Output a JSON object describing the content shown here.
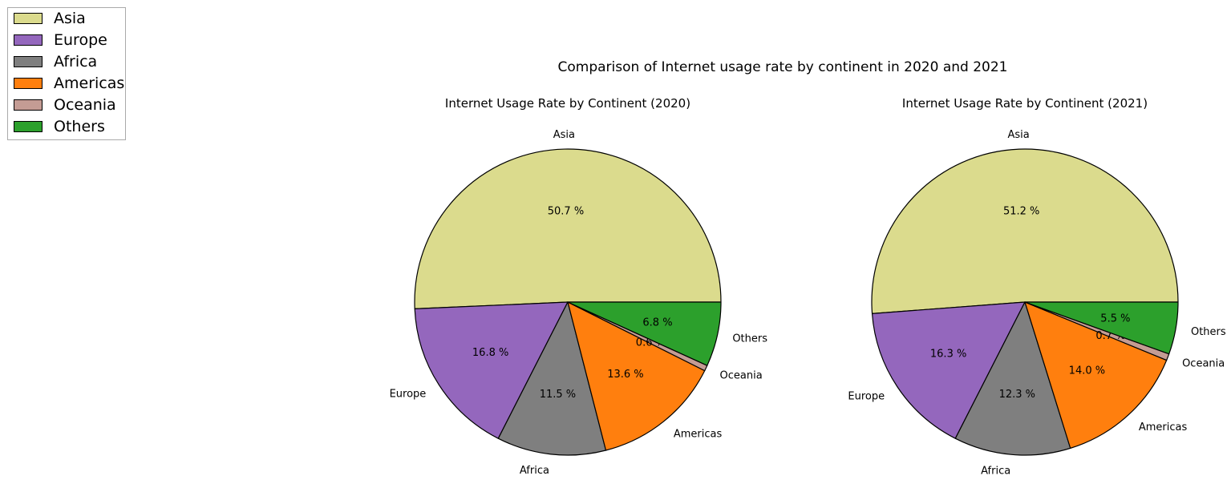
{
  "figure": {
    "suptitle": "Comparison of Internet usage rate by continent in 2020 and 2021"
  },
  "legend": {
    "items": [
      {
        "label": "Asia",
        "color": "#dbdb8d"
      },
      {
        "label": "Europe",
        "color": "#9467bd"
      },
      {
        "label": "Africa",
        "color": "#7f7f7f"
      },
      {
        "label": "Americas",
        "color": "#ff7f0e"
      },
      {
        "label": "Oceania",
        "color": "#c49c94"
      },
      {
        "label": "Others",
        "color": "#2ca02c"
      }
    ]
  },
  "chart_data": [
    {
      "type": "pie",
      "title": "Internet Usage Rate by Continent (2020)",
      "labels": [
        "Asia",
        "Europe",
        "Africa",
        "Americas",
        "Oceania",
        "Others"
      ],
      "values": [
        50.7,
        16.8,
        11.5,
        13.6,
        0.6,
        6.8
      ],
      "pct_labels": [
        "50.7 %",
        "16.8 %",
        "11.5 %",
        "13.6 %",
        "0.6 %",
        "6.8 %"
      ],
      "colors": [
        "#dbdb8d",
        "#9467bd",
        "#7f7f7f",
        "#ff7f0e",
        "#c49c94",
        "#2ca02c"
      ],
      "startangle": 0,
      "counterclock": true
    },
    {
      "type": "pie",
      "title": "Internet Usage Rate by Continent (2021)",
      "labels": [
        "Asia",
        "Europe",
        "Africa",
        "Americas",
        "Oceania",
        "Others"
      ],
      "values": [
        51.2,
        16.3,
        12.3,
        14.0,
        0.7,
        5.5
      ],
      "pct_labels": [
        "51.2 %",
        "16.3 %",
        "12.3 %",
        "14.0 %",
        "0.7 %",
        "5.5 %"
      ],
      "colors": [
        "#dbdb8d",
        "#9467bd",
        "#7f7f7f",
        "#ff7f0e",
        "#c49c94",
        "#2ca02c"
      ],
      "startangle": 0,
      "counterclock": true
    }
  ]
}
